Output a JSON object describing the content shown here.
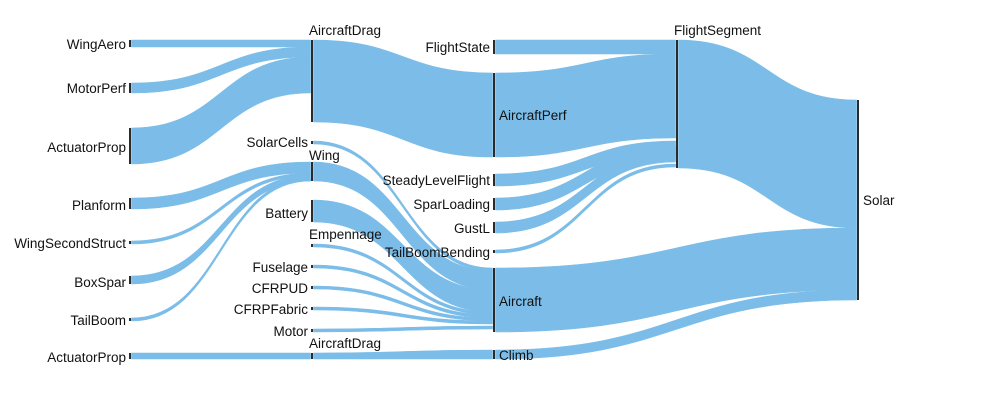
{
  "colors": {
    "link": "#7bbde8",
    "node": "#2b2b2b",
    "text": "#111111",
    "background": "#ffffff"
  },
  "nodes": [
    {
      "id": "WingAero",
      "label": "WingAero",
      "column": 0
    },
    {
      "id": "MotorPerf",
      "label": "MotorPerf",
      "column": 0
    },
    {
      "id": "ActuatorProp1",
      "label": "ActuatorProp",
      "column": 0
    },
    {
      "id": "Planform",
      "label": "Planform",
      "column": 0
    },
    {
      "id": "WingSecondStruct",
      "label": "WingSecondStruct",
      "column": 0
    },
    {
      "id": "BoxSpar",
      "label": "BoxSpar",
      "column": 0
    },
    {
      "id": "TailBoom",
      "label": "TailBoom",
      "column": 0
    },
    {
      "id": "ActuatorProp2",
      "label": "ActuatorProp",
      "column": 0
    },
    {
      "id": "AircraftDrag1",
      "label": "AircraftDrag",
      "column": 1
    },
    {
      "id": "SolarCells",
      "label": "SolarCells",
      "column": 1
    },
    {
      "id": "Wing",
      "label": "Wing",
      "column": 1
    },
    {
      "id": "Battery",
      "label": "Battery",
      "column": 1
    },
    {
      "id": "Empennage",
      "label": "Empennage",
      "column": 1
    },
    {
      "id": "Fuselage",
      "label": "Fuselage",
      "column": 1
    },
    {
      "id": "CFRPUD",
      "label": "CFRPUD",
      "column": 1
    },
    {
      "id": "CFRPFabric",
      "label": "CFRPFabric",
      "column": 1
    },
    {
      "id": "Motor",
      "label": "Motor",
      "column": 1
    },
    {
      "id": "AircraftDrag2",
      "label": "AircraftDrag",
      "column": 1
    },
    {
      "id": "FlightState",
      "label": "FlightState",
      "column": 2
    },
    {
      "id": "AircraftPerf",
      "label": "AircraftPerf",
      "column": 2
    },
    {
      "id": "SteadyLevelFlight",
      "label": "SteadyLevelFlight",
      "column": 2
    },
    {
      "id": "SparLoading",
      "label": "SparLoading",
      "column": 2
    },
    {
      "id": "GustL",
      "label": "GustL",
      "column": 2
    },
    {
      "id": "TailBoomBending",
      "label": "TailBoomBending",
      "column": 2
    },
    {
      "id": "Aircraft",
      "label": "Aircraft",
      "column": 2
    },
    {
      "id": "Climb",
      "label": "Climb",
      "column": 2
    },
    {
      "id": "FlightSegment",
      "label": "FlightSegment",
      "column": 3
    },
    {
      "id": "Solar",
      "label": "Solar",
      "column": 4
    }
  ],
  "links": [
    {
      "source": "WingAero",
      "target": "AircraftDrag1"
    },
    {
      "source": "MotorPerf",
      "target": "AircraftDrag1"
    },
    {
      "source": "ActuatorProp1",
      "target": "AircraftDrag1"
    },
    {
      "source": "Planform",
      "target": "Wing"
    },
    {
      "source": "WingSecondStruct",
      "target": "Wing"
    },
    {
      "source": "BoxSpar",
      "target": "Wing"
    },
    {
      "source": "TailBoom",
      "target": "Wing"
    },
    {
      "source": "ActuatorProp2",
      "target": "AircraftDrag2"
    },
    {
      "source": "AircraftDrag1",
      "target": "AircraftPerf"
    },
    {
      "source": "SolarCells",
      "target": "Aircraft"
    },
    {
      "source": "Wing",
      "target": "Aircraft"
    },
    {
      "source": "Battery",
      "target": "Aircraft"
    },
    {
      "source": "Empennage",
      "target": "Aircraft"
    },
    {
      "source": "Fuselage",
      "target": "Aircraft"
    },
    {
      "source": "CFRPUD",
      "target": "Aircraft"
    },
    {
      "source": "CFRPFabric",
      "target": "Aircraft"
    },
    {
      "source": "Motor",
      "target": "Aircraft"
    },
    {
      "source": "AircraftDrag2",
      "target": "Climb"
    },
    {
      "source": "FlightState",
      "target": "FlightSegment"
    },
    {
      "source": "AircraftPerf",
      "target": "FlightSegment"
    },
    {
      "source": "SteadyLevelFlight",
      "target": "FlightSegment"
    },
    {
      "source": "SparLoading",
      "target": "FlightSegment"
    },
    {
      "source": "GustL",
      "target": "FlightSegment"
    },
    {
      "source": "TailBoomBending",
      "target": "FlightSegment"
    },
    {
      "source": "FlightSegment",
      "target": "Solar"
    },
    {
      "source": "Aircraft",
      "target": "Solar"
    },
    {
      "source": "Climb",
      "target": "Solar"
    }
  ]
}
